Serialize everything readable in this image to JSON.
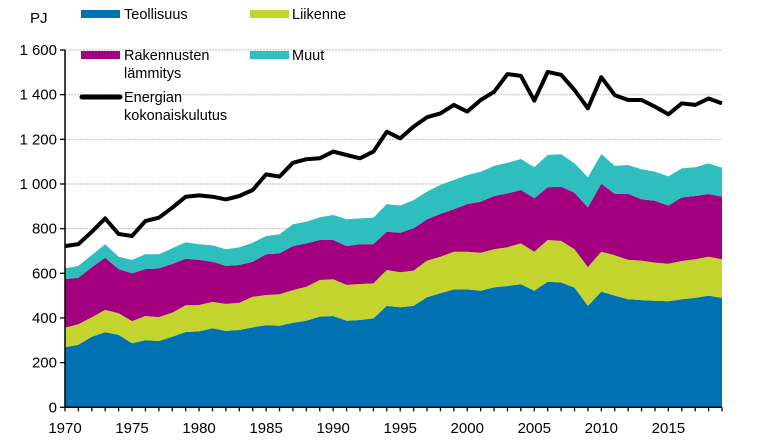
{
  "chart_data": {
    "type": "area",
    "stacked": true,
    "ylabel": "PJ",
    "ylim": [
      0,
      1600
    ],
    "yticks": [
      0,
      200,
      400,
      600,
      800,
      1000,
      1200,
      1400,
      1600
    ],
    "ytick_labels": [
      "0",
      "200",
      "400",
      "600",
      "800",
      "1 000",
      "1 200",
      "1 400",
      "1 600"
    ],
    "xlim": [
      1970,
      2019
    ],
    "xticks": [
      1970,
      1975,
      1980,
      1985,
      1990,
      1995,
      2000,
      2005,
      2010,
      2015
    ],
    "xtick_labels": [
      "1970",
      "1975",
      "1980",
      "1985",
      "1990",
      "1995",
      "2000",
      "2005",
      "2010",
      "2015"
    ],
    "grid": "horizontal",
    "legend_placement": "top",
    "x": [
      1970,
      1971,
      1972,
      1973,
      1974,
      1975,
      1976,
      1977,
      1978,
      1979,
      1980,
      1981,
      1982,
      1983,
      1984,
      1985,
      1986,
      1987,
      1988,
      1989,
      1990,
      1991,
      1992,
      1993,
      1994,
      1995,
      1996,
      1997,
      1998,
      1999,
      2000,
      2001,
      2002,
      2003,
      2004,
      2005,
      2006,
      2007,
      2008,
      2009,
      2010,
      2011,
      2012,
      2013,
      2014,
      2015,
      2016,
      2017,
      2018,
      2019
    ],
    "series": [
      {
        "name": "Teollisuus",
        "color": "#0071b1",
        "values": [
          269,
          280,
          316,
          336,
          324,
          287,
          300,
          297,
          316,
          337,
          340,
          354,
          342,
          346,
          358,
          368,
          365,
          379,
          388,
          406,
          409,
          388,
          391,
          398,
          454,
          448,
          454,
          493,
          511,
          528,
          528,
          522,
          537,
          543,
          551,
          522,
          562,
          559,
          536,
          454,
          518,
          500,
          484,
          480,
          477,
          475,
          484,
          490,
          500,
          490
        ]
      },
      {
        "name": "Liikenne",
        "color": "#c3d42f",
        "values": [
          88,
          92,
          87,
          100,
          97,
          99,
          109,
          107,
          108,
          120,
          118,
          118,
          121,
          122,
          137,
          135,
          141,
          146,
          152,
          164,
          164,
          160,
          161,
          157,
          161,
          157,
          158,
          164,
          163,
          169,
          169,
          170,
          171,
          174,
          183,
          175,
          187,
          186,
          172,
          174,
          179,
          181,
          176,
          177,
          171,
          168,
          171,
          173,
          174,
          173
        ]
      },
      {
        "name": "Rakennusten lämmitys",
        "name_lines": [
          "Rakennusten",
          "lämmitys"
        ],
        "color": "#a3007f",
        "values": [
          217,
          208,
          224,
          234,
          198,
          214,
          210,
          218,
          218,
          208,
          202,
          180,
          170,
          169,
          157,
          182,
          184,
          197,
          194,
          179,
          176,
          174,
          178,
          176,
          171,
          177,
          190,
          185,
          192,
          190,
          213,
          229,
          238,
          241,
          239,
          239,
          236,
          243,
          253,
          267,
          304,
          275,
          296,
          275,
          277,
          260,
          285,
          283,
          281,
          280
        ]
      },
      {
        "name": "Muut",
        "color": "#2dbebd",
        "values": [
          48,
          53,
          55,
          60,
          55,
          60,
          66,
          63,
          70,
          74,
          70,
          73,
          75,
          79,
          85,
          82,
          85,
          98,
          97,
          102,
          112,
          120,
          116,
          118,
          124,
          121,
          126,
          124,
          130,
          131,
          130,
          134,
          135,
          137,
          139,
          139,
          145,
          145,
          131,
          135,
          133,
          125,
          129,
          134,
          130,
          131,
          130,
          129,
          137,
          130
        ]
      }
    ],
    "line_series": {
      "name": "Energian kokonaiskulutus",
      "name_lines": [
        "Energian",
        "kokonaiskulutus"
      ],
      "color": "#000000",
      "values": [
        722,
        731,
        786,
        846,
        776,
        767,
        834,
        849,
        894,
        943,
        949,
        943,
        931,
        946,
        973,
        1043,
        1033,
        1095,
        1111,
        1115,
        1145,
        1130,
        1115,
        1145,
        1234,
        1204,
        1257,
        1299,
        1316,
        1354,
        1324,
        1376,
        1413,
        1492,
        1484,
        1373,
        1502,
        1489,
        1421,
        1339,
        1478,
        1398,
        1376,
        1376,
        1346,
        1312,
        1361,
        1354,
        1383,
        1361
      ]
    }
  }
}
